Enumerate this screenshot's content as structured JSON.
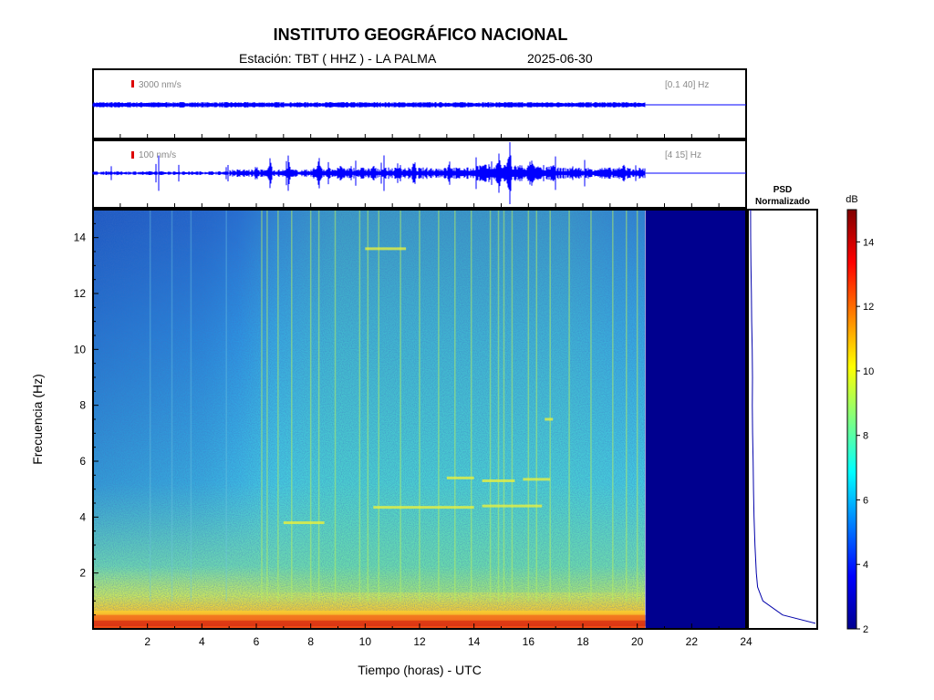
{
  "header": {
    "title": "INSTITUTO GEOGRÁFICO NACIONAL",
    "station": "Estación:  TBT ( HHZ ) - LA PALMA",
    "date": "2025-06-30"
  },
  "traces": [
    {
      "scale_label": "3000 nm/s",
      "band_label": "[0.1 40] Hz",
      "data_end_hour": 20.3
    },
    {
      "scale_label": "100 nm/s",
      "band_label": "[4 15] Hz",
      "data_end_hour": 20.3
    }
  ],
  "colors": {
    "trace": "#0000ff",
    "scale_marker": "#dd0000",
    "no_data": "#00008f"
  },
  "chart_data": {
    "type": "heatmap",
    "title": "INSTITUTO GEOGRÁFICO NACIONAL",
    "xlabel": "Tiempo (horas) - UTC",
    "ylabel": "Frecuencia  (Hz)",
    "xlim": [
      0,
      24
    ],
    "ylim": [
      0,
      15
    ],
    "xticks": [
      2,
      4,
      6,
      8,
      10,
      12,
      14,
      16,
      18,
      20,
      22,
      24
    ],
    "yticks": [
      2,
      4,
      6,
      8,
      10,
      12,
      14
    ],
    "data_end_hour": 20.3,
    "colorbar": {
      "label": "dB",
      "range": [
        2,
        15
      ],
      "ticks": [
        2,
        4,
        6,
        8,
        10,
        12,
        14
      ],
      "colormap": "jet"
    },
    "psd": {
      "title_line1": "PSD",
      "title_line2": "Normalizado",
      "freq": [
        0.2,
        0.5,
        1,
        1.5,
        2,
        3,
        4,
        5,
        6,
        7,
        8,
        9,
        10,
        11,
        12,
        13,
        14,
        15
      ],
      "value": [
        1.0,
        0.5,
        0.2,
        0.12,
        0.1,
        0.08,
        0.07,
        0.06,
        0.05,
        0.045,
        0.04,
        0.04,
        0.035,
        0.03,
        0.025,
        0.02,
        0.015,
        0.015
      ]
    }
  }
}
